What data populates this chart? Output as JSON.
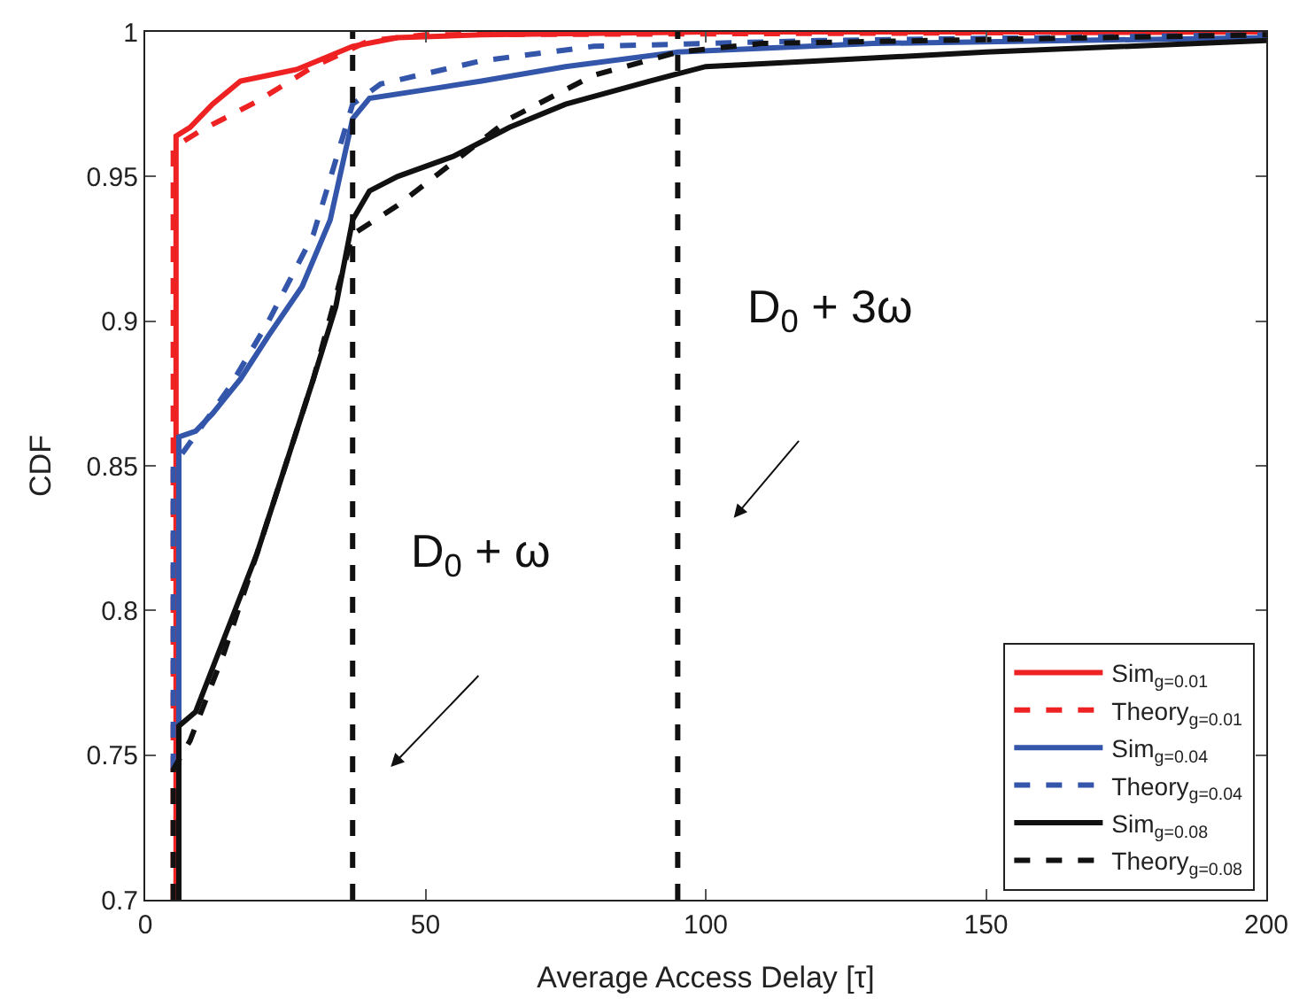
{
  "chart_data": {
    "type": "line",
    "xlabel": "Average Access Delay [τ]",
    "ylabel": "CDF",
    "xlim": [
      0,
      200
    ],
    "ylim": [
      0.7,
      1
    ],
    "xticks": [
      0,
      50,
      100,
      150,
      200
    ],
    "yticks": [
      0.7,
      0.75,
      0.8,
      0.85,
      0.9,
      0.95,
      1
    ],
    "legend": "bottom right",
    "marker": "none",
    "ref_lines": [
      {
        "axis": "x",
        "value": 37,
        "color": "#111111",
        "line_style": "dashed"
      },
      {
        "axis": "x",
        "value": 95,
        "color": "#111111",
        "line_style": "dashed"
      }
    ],
    "annotations": [
      "D$_{0}$ + ω",
      "D$_{0}$ + 3ω"
    ],
    "series": [
      {
        "name": "Sim$_{g=0.01}$",
        "color": "#ee2222",
        "line_style": "solid",
        "x": [
          5.5,
          5.5,
          8,
          12,
          17,
          22,
          27,
          32,
          37,
          45,
          60,
          100,
          200
        ],
        "values": [
          0.7,
          0.964,
          0.967,
          0.975,
          0.983,
          0.985,
          0.987,
          0.991,
          0.995,
          0.998,
          0.999,
          1,
          1
        ]
      },
      {
        "name": "Theory$_{g=0.01}$",
        "color": "#ee2222",
        "line_style": "dashed",
        "x": [
          5,
          5,
          10,
          20,
          30,
          40,
          50,
          200
        ],
        "values": [
          0.7,
          0.96,
          0.966,
          0.976,
          0.988,
          0.997,
          0.999,
          1
        ]
      },
      {
        "name": "Sim$_{g=0.04}$",
        "color": "#3355aa",
        "line_style": "solid",
        "x": [
          6,
          6,
          9,
          12,
          17,
          22,
          28,
          33,
          37,
          40,
          50,
          60,
          75,
          95,
          130,
          200
        ],
        "values": [
          0.745,
          0.86,
          0.862,
          0.868,
          0.88,
          0.895,
          0.912,
          0.935,
          0.97,
          0.977,
          0.98,
          0.983,
          0.988,
          0.993,
          0.996,
          0.998
        ]
      },
      {
        "name": "Theory$_{g=0.04}$",
        "color": "#3355aa",
        "line_style": "dashed",
        "x": [
          5,
          5,
          8,
          15,
          22,
          30,
          37,
          42,
          60,
          80,
          120,
          200
        ],
        "values": [
          0.745,
          0.85,
          0.858,
          0.877,
          0.9,
          0.93,
          0.975,
          0.982,
          0.99,
          0.995,
          0.997,
          0.999
        ]
      },
      {
        "name": "Sim$_{g=0.08}$",
        "color": "#111111",
        "line_style": "solid",
        "x": [
          6,
          6,
          9,
          14,
          20,
          25,
          30,
          34,
          37,
          40,
          45,
          55,
          65,
          75,
          90,
          100,
          120,
          150,
          200
        ],
        "values": [
          0.7,
          0.76,
          0.765,
          0.79,
          0.82,
          0.85,
          0.88,
          0.905,
          0.935,
          0.945,
          0.95,
          0.957,
          0.967,
          0.975,
          0.983,
          0.988,
          0.99,
          0.993,
          0.997
        ]
      },
      {
        "name": "Theory$_{g=0.08}$",
        "color": "#111111",
        "line_style": "dashed",
        "x": [
          5,
          5,
          8,
          14,
          20,
          30,
          37,
          45,
          55,
          65,
          80,
          95,
          110,
          200
        ],
        "values": [
          0.7,
          0.745,
          0.755,
          0.785,
          0.82,
          0.88,
          0.93,
          0.94,
          0.955,
          0.97,
          0.985,
          0.993,
          0.996,
          0.999
        ]
      }
    ]
  }
}
